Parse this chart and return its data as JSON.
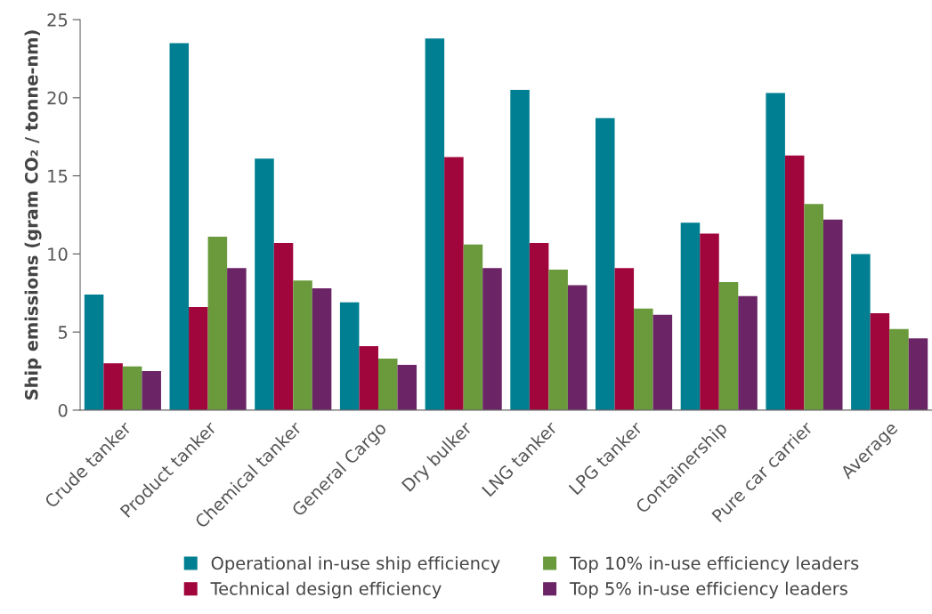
{
  "chart_data": {
    "type": "bar",
    "ylabel": "Ship emissions (gram CO₂ / tonne-nm)",
    "categories": [
      "Crude tanker",
      "Product tanker",
      "Chemical tanker",
      "General Cargo",
      "Dry bulker",
      "LNG tanker",
      "LPG tanker",
      "Containership",
      "Pure car carrier",
      "Average"
    ],
    "series": [
      {
        "name": "Operational in-use ship efficiency",
        "color": "#007f92",
        "values": [
          7.4,
          23.5,
          16.1,
          6.9,
          23.8,
          20.5,
          18.7,
          12.0,
          20.3,
          10.0
        ]
      },
      {
        "name": "Technical design efficiency",
        "color": "#a0063c",
        "values": [
          3.0,
          6.6,
          10.7,
          4.1,
          16.2,
          10.7,
          9.1,
          11.3,
          16.3,
          6.2
        ]
      },
      {
        "name": "Top 10% in-use efficiency leaders",
        "color": "#6a9a3c",
        "values": [
          2.8,
          11.1,
          8.3,
          3.3,
          10.6,
          9.0,
          6.5,
          8.2,
          13.2,
          5.2
        ]
      },
      {
        "name": "Top 5% in-use efficiency leaders",
        "color": "#6b2466",
        "values": [
          2.5,
          9.1,
          7.8,
          2.9,
          9.1,
          8.0,
          6.1,
          7.3,
          12.2,
          4.6
        ]
      }
    ],
    "ylim": [
      0,
      25
    ],
    "yticks": [
      0,
      5,
      10,
      15,
      20,
      25
    ],
    "grid": false,
    "legend": "bottom"
  }
}
